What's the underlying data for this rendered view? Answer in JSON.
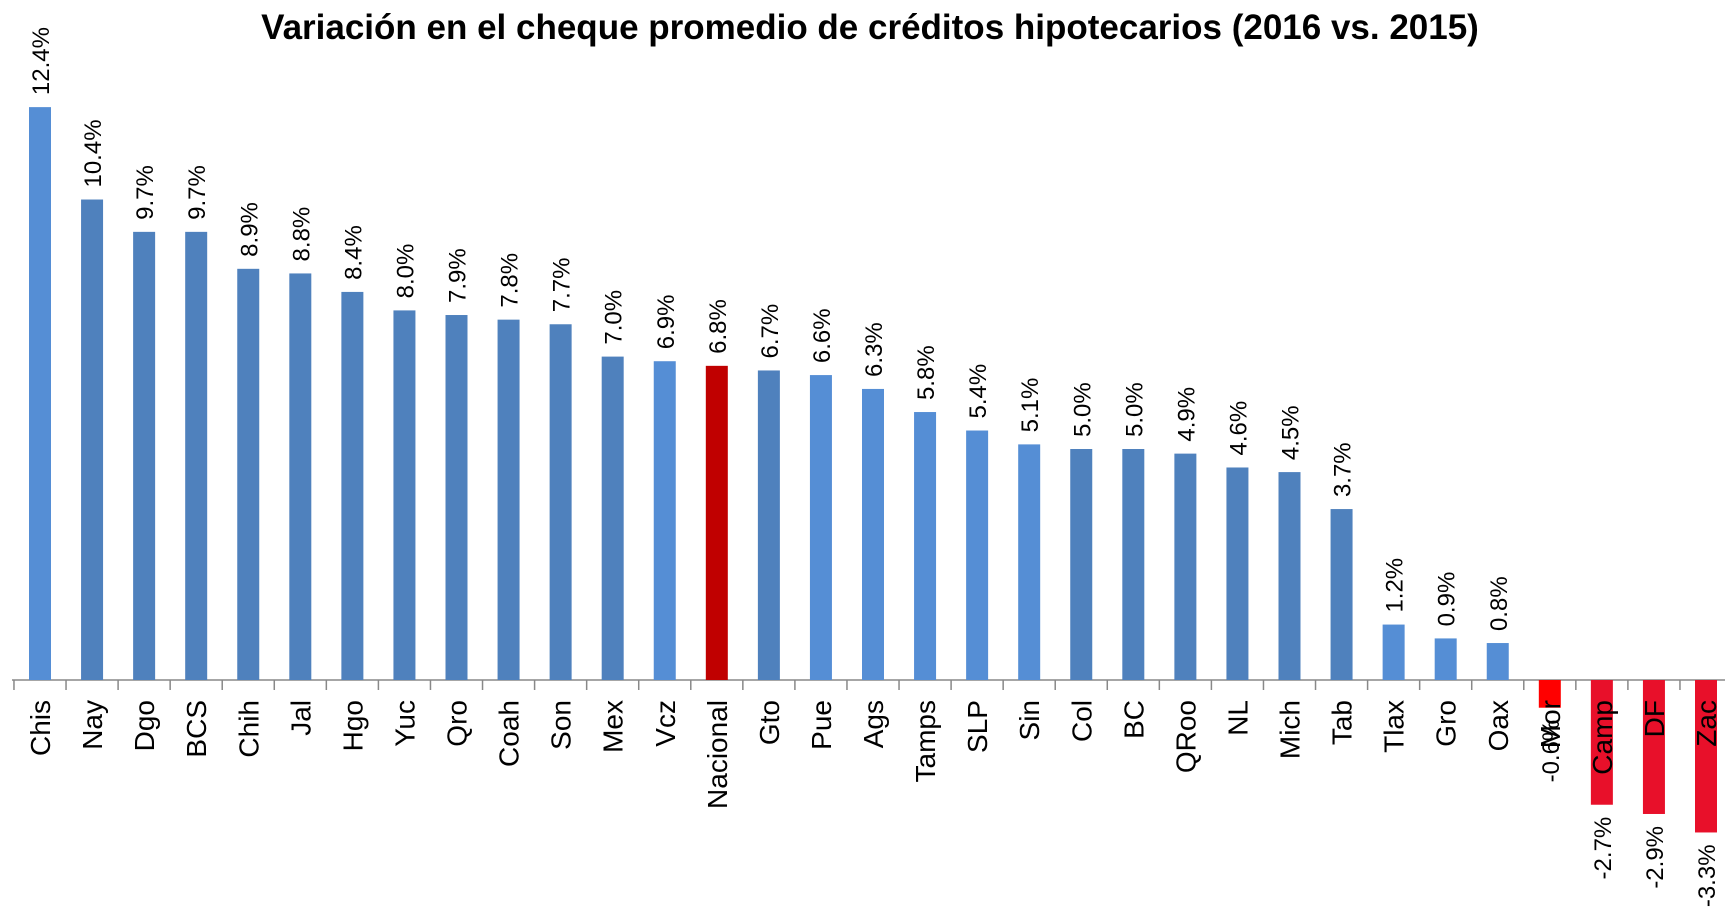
{
  "chart_data": {
    "type": "bar",
    "title": "Variación en el cheque promedio de créditos hipotecarios (2016 vs. 2015)",
    "categories": [
      "Chis",
      "Nay",
      "Dgo",
      "BCS",
      "Chih",
      "Jal",
      "Hgo",
      "Yuc",
      "Qro",
      "Coah",
      "Son",
      "Mex",
      "Vcz",
      "Nacional",
      "Gto",
      "Pue",
      "Ags",
      "Tamps",
      "SLP",
      "Sin",
      "Col",
      "BC",
      "QRoo",
      "NL",
      "Mich",
      "Tab",
      "Tlax",
      "Gro",
      "Oax",
      "Mor",
      "Camp",
      "DF",
      "Zac"
    ],
    "values": [
      12.4,
      10.4,
      9.7,
      9.7,
      8.9,
      8.8,
      8.4,
      8.0,
      7.9,
      7.8,
      7.7,
      7.0,
      6.9,
      6.8,
      6.7,
      6.6,
      6.3,
      5.8,
      5.4,
      5.1,
      5.0,
      5.0,
      4.9,
      4.6,
      4.5,
      3.7,
      1.2,
      0.9,
      0.8,
      -0.6,
      -2.7,
      -2.9,
      -3.3
    ],
    "value_labels": [
      "12.4%",
      "10.4%",
      "9.7%",
      "9.7%",
      "8.9%",
      "8.8%",
      "8.4%",
      "8.0%",
      "7.9%",
      "7.8%",
      "7.7%",
      "7.0%",
      "6.9%",
      "6.8%",
      "6.7%",
      "6.6%",
      "6.3%",
      "5.8%",
      "5.4%",
      "5.1%",
      "5.0%",
      "5.0%",
      "4.9%",
      "4.6%",
      "4.5%",
      "3.7%",
      "1.2%",
      "0.9%",
      "0.8%",
      "-0.6%",
      "-2.7%",
      "-2.9%",
      "-3.3%"
    ],
    "colors": [
      "#558ed5",
      "#4f81bd",
      "#4f81bd",
      "#4f81bd",
      "#4f81bd",
      "#4f81bd",
      "#4f81bd",
      "#4f81bd",
      "#4f81bd",
      "#4f81bd",
      "#4f81bd",
      "#4f81bd",
      "#558ed5",
      "#c00000",
      "#4f81bd",
      "#558ed5",
      "#558ed5",
      "#558ed5",
      "#558ed5",
      "#558ed5",
      "#4f81bd",
      "#4f81bd",
      "#4f81bd",
      "#4f81bd",
      "#4f81bd",
      "#4f81bd",
      "#558ed5",
      "#558ed5",
      "#558ed5",
      "#ff0000",
      "#e8102a",
      "#e8102a",
      "#e8102a"
    ]
  }
}
